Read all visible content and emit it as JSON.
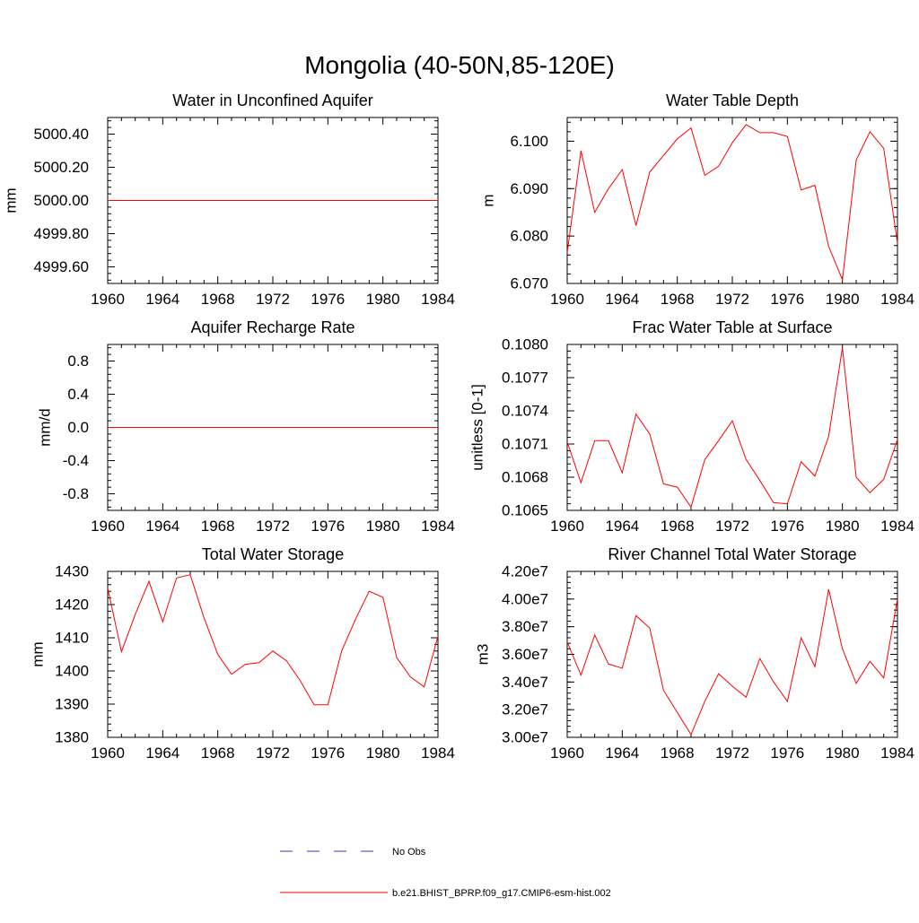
{
  "figure": {
    "title": "Mongolia (40-50N,85-120E)",
    "model_color": "#ff0000",
    "obs_color": "#3a3aa8"
  },
  "legend": {
    "obs_label": "No Obs",
    "model_label": "b.e21.BHIST_BPRP.f09_g17.CMIP6-esm-hist.002"
  },
  "chart_data": [
    {
      "type": "line",
      "title": "Water in Unconfined Aquifer",
      "ylabel": "mm",
      "xlim": [
        1960,
        1984
      ],
      "ylim": [
        4999.5,
        5000.5
      ],
      "x_ticks": [
        1960,
        1964,
        1968,
        1972,
        1976,
        1980,
        1984
      ],
      "x_tick_labels": [
        "1960",
        "1964",
        "1968",
        "1972",
        "1976",
        "1980",
        "1984"
      ],
      "y_ticks": [
        4999.6,
        4999.8,
        5000.0,
        5000.2,
        5000.4
      ],
      "y_tick_labels": [
        "4999.60",
        "4999.80",
        "5000.00",
        "5000.20",
        "5000.40"
      ],
      "x": [
        1960,
        1961,
        1962,
        1963,
        1964,
        1965,
        1966,
        1967,
        1968,
        1969,
        1970,
        1971,
        1972,
        1973,
        1974,
        1975,
        1976,
        1977,
        1978,
        1979,
        1980,
        1981,
        1982,
        1983,
        1984
      ],
      "series": [
        {
          "values": [
            5000,
            5000,
            5000,
            5000,
            5000,
            5000,
            5000,
            5000,
            5000,
            5000,
            5000,
            5000,
            5000,
            5000,
            5000,
            5000,
            5000,
            5000,
            5000,
            5000,
            5000,
            5000,
            5000,
            5000,
            5000
          ]
        }
      ]
    },
    {
      "type": "line",
      "title": "Water Table Depth",
      "ylabel": "m",
      "xlim": [
        1960,
        1984
      ],
      "ylim": [
        6.07,
        6.105
      ],
      "x_ticks": [
        1960,
        1964,
        1968,
        1972,
        1976,
        1980,
        1984
      ],
      "x_tick_labels": [
        "1960",
        "1964",
        "1968",
        "1972",
        "1976",
        "1980",
        "1984"
      ],
      "y_ticks": [
        6.07,
        6.08,
        6.09,
        6.1
      ],
      "y_tick_labels": [
        "6.070",
        "6.080",
        "6.090",
        "6.100"
      ],
      "x": [
        1960,
        1961,
        1962,
        1963,
        1964,
        1965,
        1966,
        1967,
        1968,
        1969,
        1970,
        1971,
        1972,
        1973,
        1974,
        1975,
        1976,
        1977,
        1978,
        1979,
        1980,
        1981,
        1982,
        1983,
        1984
      ],
      "series": [
        {
          "values": [
            6.0765,
            6.098,
            6.085,
            6.09,
            6.094,
            6.0822,
            6.0935,
            6.097,
            6.1005,
            6.1028,
            6.0928,
            6.0947,
            6.0997,
            6.1035,
            6.1018,
            6.1018,
            6.101,
            6.0897,
            6.0907,
            6.0778,
            6.0708,
            6.096,
            6.102,
            6.0985,
            6.0785
          ]
        }
      ]
    },
    {
      "type": "line",
      "title": "Aquifer Recharge Rate",
      "ylabel": "mm/d",
      "xlim": [
        1960,
        1984
      ],
      "ylim": [
        -1.0,
        1.0
      ],
      "x_ticks": [
        1960,
        1964,
        1968,
        1972,
        1976,
        1980,
        1984
      ],
      "x_tick_labels": [
        "1960",
        "1964",
        "1968",
        "1972",
        "1976",
        "1980",
        "1984"
      ],
      "y_ticks": [
        -0.8,
        -0.4,
        0.0,
        0.4,
        0.8
      ],
      "y_tick_labels": [
        "-0.8",
        "-0.4",
        "0.0",
        "0.4",
        "0.8"
      ],
      "x": [
        1960,
        1961,
        1962,
        1963,
        1964,
        1965,
        1966,
        1967,
        1968,
        1969,
        1970,
        1971,
        1972,
        1973,
        1974,
        1975,
        1976,
        1977,
        1978,
        1979,
        1980,
        1981,
        1982,
        1983,
        1984
      ],
      "series": [
        {
          "values": [
            0,
            0,
            0,
            0,
            0,
            0,
            0,
            0,
            0,
            0,
            0,
            0,
            0,
            0,
            0,
            0,
            0,
            0,
            0,
            0,
            0,
            0,
            0,
            0,
            0
          ]
        }
      ]
    },
    {
      "type": "line",
      "title": "Frac Water Table at Surface",
      "ylabel": "unitless [0-1]",
      "xlim": [
        1960,
        1984
      ],
      "ylim": [
        0.1065,
        0.108
      ],
      "x_ticks": [
        1960,
        1964,
        1968,
        1972,
        1976,
        1980,
        1984
      ],
      "x_tick_labels": [
        "1960",
        "1964",
        "1968",
        "1972",
        "1976",
        "1980",
        "1984"
      ],
      "y_ticks": [
        0.1065,
        0.1068,
        0.1071,
        0.1074,
        0.1077,
        0.108
      ],
      "y_tick_labels": [
        "0.1065",
        "0.1068",
        "0.1071",
        "0.1074",
        "0.1077",
        "0.1080"
      ],
      "x": [
        1960,
        1961,
        1962,
        1963,
        1964,
        1965,
        1966,
        1967,
        1968,
        1969,
        1970,
        1971,
        1972,
        1973,
        1974,
        1975,
        1976,
        1977,
        1978,
        1979,
        1980,
        1981,
        1982,
        1983,
        1984
      ],
      "series": [
        {
          "values": [
            0.10712,
            0.10675,
            0.10713,
            0.10713,
            0.10684,
            0.10737,
            0.10719,
            0.10674,
            0.10671,
            0.10653,
            0.10696,
            0.10713,
            0.10731,
            0.10696,
            0.10677,
            0.10657,
            0.10656,
            0.10694,
            0.10681,
            0.10717,
            0.10797,
            0.1068,
            0.10666,
            0.10678,
            0.10714
          ]
        }
      ]
    },
    {
      "type": "line",
      "title": "Total Water Storage",
      "ylabel": "mm",
      "xlim": [
        1960,
        1984
      ],
      "ylim": [
        1380,
        1430
      ],
      "x_ticks": [
        1960,
        1964,
        1968,
        1972,
        1976,
        1980,
        1984
      ],
      "x_tick_labels": [
        "1960",
        "1964",
        "1968",
        "1972",
        "1976",
        "1980",
        "1984"
      ],
      "y_ticks": [
        1380,
        1390,
        1400,
        1410,
        1420,
        1430
      ],
      "y_tick_labels": [
        "1380",
        "1390",
        "1400",
        "1410",
        "1420",
        "1430"
      ],
      "x": [
        1960,
        1961,
        1962,
        1963,
        1964,
        1965,
        1966,
        1967,
        1968,
        1969,
        1970,
        1971,
        1972,
        1973,
        1974,
        1975,
        1976,
        1977,
        1978,
        1979,
        1980,
        1981,
        1982,
        1983,
        1984
      ],
      "series": [
        {
          "values": [
            1425,
            1405.8,
            1417,
            1427,
            1414.8,
            1428,
            1429,
            1416,
            1405,
            1399,
            1402,
            1402.5,
            1406,
            1403,
            1397,
            1389.8,
            1389.8,
            1406,
            1415.5,
            1424,
            1422.2,
            1404,
            1398.2,
            1395.2,
            1410.5
          ]
        }
      ]
    },
    {
      "type": "line",
      "title": "River Channel Total Water Storage",
      "ylabel": "m3",
      "xlim": [
        1960,
        1984
      ],
      "ylim": [
        30000000,
        42000000
      ],
      "x_ticks": [
        1960,
        1964,
        1968,
        1972,
        1976,
        1980,
        1984
      ],
      "x_tick_labels": [
        "1960",
        "1964",
        "1968",
        "1972",
        "1976",
        "1980",
        "1984"
      ],
      "y_ticks": [
        30000000,
        32000000,
        34000000,
        36000000,
        38000000,
        40000000,
        42000000
      ],
      "y_tick_labels": [
        "3.00e7",
        "3.20e7",
        "3.40e7",
        "3.60e7",
        "3.80e7",
        "4.00e7",
        "4.20e7"
      ],
      "x": [
        1960,
        1961,
        1962,
        1963,
        1964,
        1965,
        1966,
        1967,
        1968,
        1969,
        1970,
        1971,
        1972,
        1973,
        1974,
        1975,
        1976,
        1977,
        1978,
        1979,
        1980,
        1981,
        1982,
        1983,
        1984
      ],
      "series": [
        {
          "values": [
            36900000,
            34500000,
            37400000,
            35300000,
            35000000,
            38800000,
            37900000,
            33400000,
            31800000,
            30200000,
            32600000,
            34600000,
            33700000,
            32900000,
            35700000,
            34000000,
            32600000,
            37200000,
            35100000,
            40700000,
            36400000,
            33900000,
            35500000,
            34300000,
            40000000
          ]
        }
      ]
    }
  ]
}
